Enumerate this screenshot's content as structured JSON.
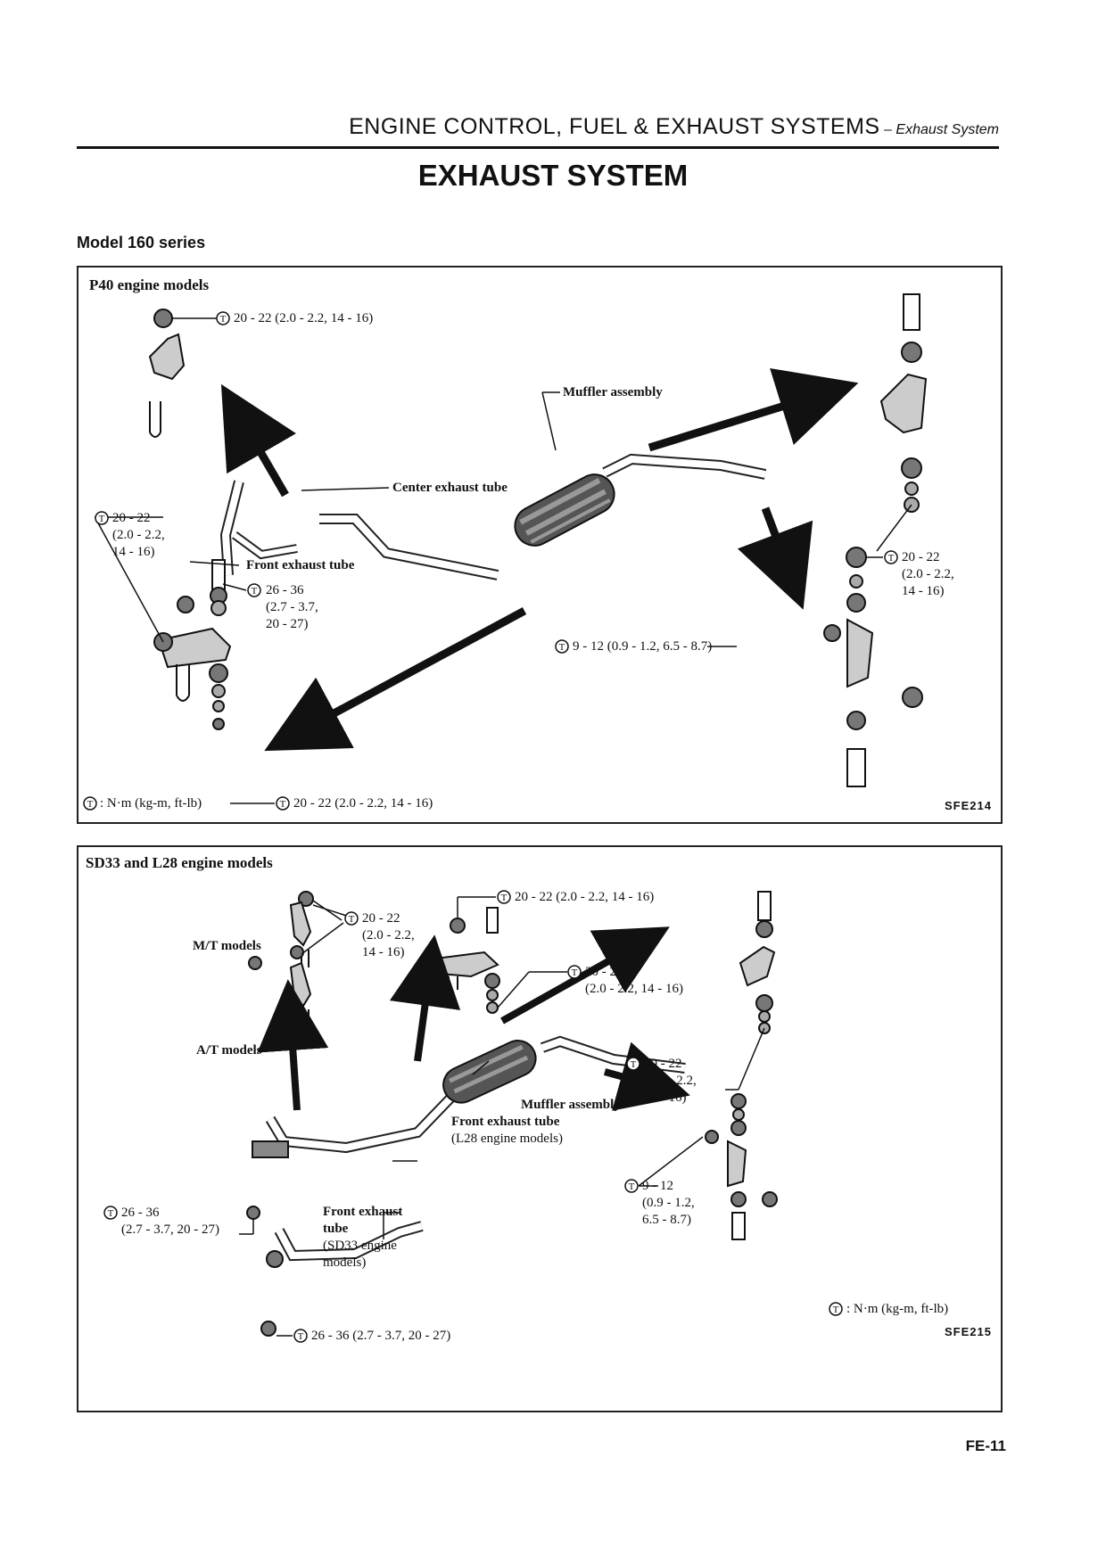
{
  "header": {
    "main": "ENGINE CONTROL, FUEL & EXHAUST SYSTEMS",
    "sub": " – Exhaust System"
  },
  "title": "EXHAUST SYSTEM",
  "section": "Model 160 series",
  "panel1": {
    "heading": "P40 engine models",
    "t_top": "20 - 22 (2.0 - 2.2, 14 - 16)",
    "muffler": "Muffler assembly",
    "center_tube": "Center exhaust tube",
    "t_left_1": "20 - 22",
    "t_left_2": "(2.0 - 2.2,",
    "t_left_3": "14 - 16)",
    "front_tube": "Front exhaust tube",
    "t_mid_1": "26 - 36",
    "t_mid_2": "(2.7 - 3.7,",
    "t_mid_3": "20 - 27)",
    "t_right_1": "20 - 22",
    "t_right_2": "(2.0 - 2.2,",
    "t_right_3": "14 - 16)",
    "t_clamp": "9 - 12 (0.9 - 1.2, 6.5 - 8.7)",
    "unit": ": N·m (kg-m, ft-lb)",
    "t_bottom": "20 - 22 (2.0 - 2.2, 14 - 16)",
    "code": "SFE214"
  },
  "panel2": {
    "heading": "SD33 and L28 engine models",
    "t_top": "20 - 22 (2.0 - 2.2, 14 - 16)",
    "t_mt_1": "20 - 22",
    "t_mt_2": "(2.0 - 2.2,",
    "t_mt_3": "14 - 16)",
    "mt": "M/T models",
    "at": "A/T models",
    "t_center": "20 - 22",
    "t_center_2": "(2.0 - 2.2, 14 - 16)",
    "t_right_1": "20 - 22",
    "t_right_2": "(2.0 - 2.2,",
    "t_right_3": "14 - 16)",
    "muffler": "Muffler assembly",
    "front_l28_1": "Front exhaust tube",
    "front_l28_2": "(L28 engine models)",
    "t_clamp_1": "9 - 12",
    "t_clamp_2": "(0.9 - 1.2,",
    "t_clamp_3": "6.5 - 8.7)",
    "t_left_1": "26 - 36",
    "t_left_2": "(2.7 - 3.7, 20 - 27)",
    "front_sd33_1": "Front exhaust",
    "front_sd33_2": "tube",
    "front_sd33_3": "(SD33 engine",
    "front_sd33_4": "models)",
    "t_bottom": "26 - 36 (2.7 - 3.7, 20 - 27)",
    "unit": ": N·m (kg-m, ft-lb)",
    "code": "SFE215"
  },
  "page_number": "FE-11",
  "icons": {
    "torque": "torque-symbol-icon"
  }
}
